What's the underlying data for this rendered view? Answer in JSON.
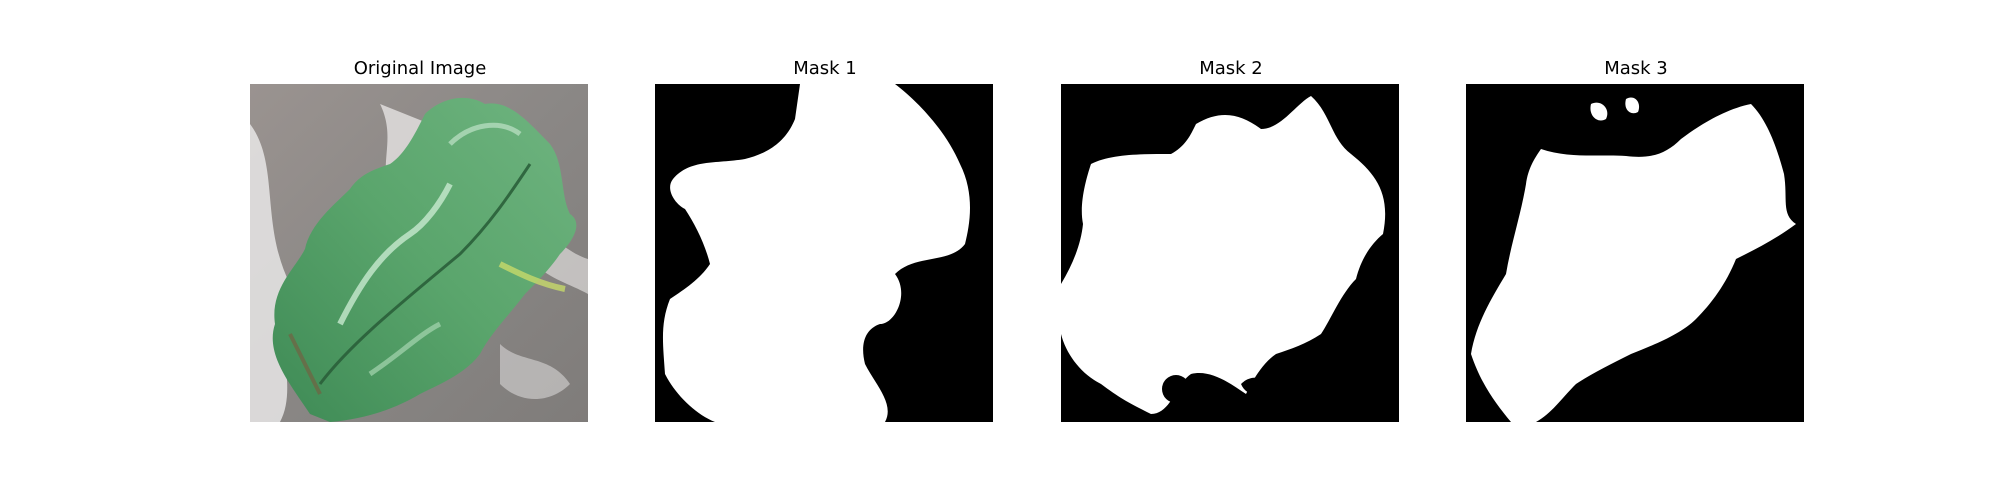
{
  "figure": {
    "panels": [
      {
        "title": "Original Image",
        "kind": "photo"
      },
      {
        "title": "Mask 1",
        "kind": "mask"
      },
      {
        "title": "Mask 2",
        "kind": "mask"
      },
      {
        "title": "Mask 3",
        "kind": "mask"
      }
    ]
  },
  "colors": {
    "background": "#ffffff",
    "mask_background": "#000000",
    "mask_foreground": "#ffffff",
    "leaf_green": "#4f9a62",
    "leaf_dark": "#2f6d44",
    "leaf_light": "#9fd3a8",
    "surface_gray": "#8c8885"
  }
}
